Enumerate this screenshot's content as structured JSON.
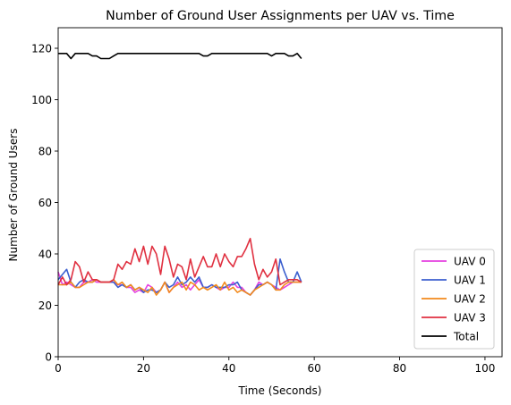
{
  "chart_data": {
    "type": "line",
    "title": "Number of Ground User Assignments per UAV vs. Time",
    "xlabel": "Time (Seconds)",
    "ylabel": "Number of Ground Users",
    "xlim": [
      0,
      104
    ],
    "ylim": [
      0,
      128
    ],
    "xticks": [
      0,
      20,
      40,
      60,
      80,
      100
    ],
    "yticks": [
      0,
      20,
      40,
      60,
      80,
      100,
      120
    ],
    "grid": false,
    "legend_position": "bottom-right",
    "x": [
      0,
      1,
      2,
      3,
      4,
      5,
      6,
      7,
      8,
      9,
      10,
      11,
      12,
      13,
      14,
      15,
      16,
      17,
      18,
      19,
      20,
      21,
      22,
      23,
      24,
      25,
      26,
      27,
      28,
      29,
      30,
      31,
      32,
      33,
      34,
      35,
      36,
      37,
      38,
      39,
      40,
      41,
      42,
      43,
      44,
      45,
      46,
      47,
      48,
      49,
      50,
      51,
      52,
      53,
      54,
      55,
      56,
      57
    ],
    "series": [
      {
        "name": "UAV 0",
        "color": "#e541e0",
        "values": [
          33,
          28,
          29,
          28,
          27,
          27,
          29,
          29,
          30,
          29,
          29,
          29,
          29,
          29,
          28,
          28,
          27,
          27,
          25,
          26,
          25,
          28,
          27,
          25,
          26,
          29,
          25,
          27,
          29,
          27,
          28,
          26,
          28,
          30,
          27,
          27,
          28,
          27,
          26,
          27,
          27,
          29,
          27,
          27,
          25,
          24,
          26,
          29,
          28,
          29,
          28,
          27,
          26,
          27,
          28,
          29,
          29,
          29
        ]
      },
      {
        "name": "UAV 1",
        "color": "#3b5fcf",
        "values": [
          30,
          32,
          34,
          29,
          27,
          29,
          30,
          29,
          29,
          30,
          29,
          29,
          29,
          29,
          27,
          28,
          27,
          28,
          26,
          27,
          25,
          26,
          26,
          25,
          26,
          29,
          27,
          28,
          31,
          28,
          29,
          31,
          29,
          31,
          27,
          27,
          28,
          27,
          27,
          27,
          28,
          28,
          29,
          26,
          25,
          24,
          26,
          28,
          28,
          29,
          28,
          26,
          38,
          33,
          29,
          29,
          33,
          29
        ]
      },
      {
        "name": "UAV 2",
        "color": "#f28a1c",
        "values": [
          28,
          28,
          28,
          29,
          27,
          27,
          28,
          29,
          29,
          30,
          29,
          29,
          29,
          30,
          28,
          29,
          27,
          28,
          26,
          27,
          26,
          25,
          27,
          24,
          26,
          29,
          25,
          27,
          28,
          29,
          26,
          29,
          28,
          26,
          27,
          26,
          27,
          28,
          26,
          29,
          26,
          27,
          25,
          26,
          25,
          24,
          26,
          27,
          28,
          29,
          28,
          26,
          26,
          28,
          29,
          29,
          29,
          29
        ]
      },
      {
        "name": "UAV 3",
        "color": "#e03040",
        "values": [
          28,
          31,
          28,
          30,
          37,
          35,
          29,
          33,
          30,
          30,
          29,
          29,
          29,
          30,
          36,
          34,
          37,
          36,
          42,
          37,
          43,
          36,
          43,
          40,
          32,
          43,
          38,
          31,
          36,
          35,
          30,
          38,
          31,
          35,
          39,
          35,
          35,
          40,
          35,
          40,
          37,
          35,
          39,
          39,
          42,
          46,
          36,
          30,
          34,
          31,
          33,
          38,
          28,
          29,
          30,
          30,
          30,
          29
        ]
      },
      {
        "name": "Total",
        "color": "#000000",
        "values": [
          118,
          118,
          118,
          116,
          118,
          118,
          118,
          118,
          117,
          117,
          116,
          116,
          116,
          117,
          118,
          118,
          118,
          118,
          118,
          118,
          118,
          118,
          118,
          118,
          118,
          118,
          118,
          118,
          118,
          118,
          118,
          118,
          118,
          118,
          117,
          117,
          118,
          118,
          118,
          118,
          118,
          118,
          118,
          118,
          118,
          118,
          118,
          118,
          118,
          118,
          117,
          118,
          118,
          118,
          117,
          117,
          118,
          116
        ]
      }
    ]
  }
}
